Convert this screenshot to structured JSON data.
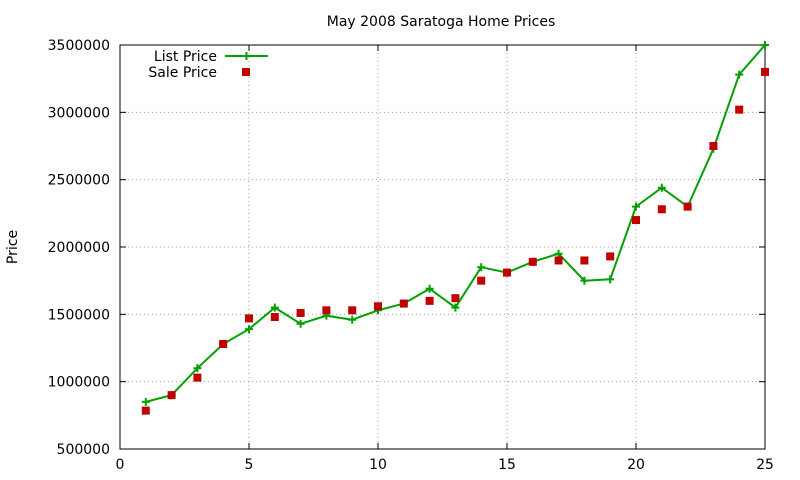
{
  "chart_data": {
    "type": "line",
    "title": "May 2008 Saratoga Home Prices",
    "xlabel": "",
    "ylabel": "Price",
    "xlim": [
      0,
      25
    ],
    "ylim": [
      500000,
      3500000
    ],
    "xticks": [
      0,
      5,
      10,
      15,
      20,
      25
    ],
    "xtick_labels": [
      "0",
      "5",
      "10",
      "15",
      "20",
      "25"
    ],
    "yticks": [
      500000,
      1000000,
      1500000,
      2000000,
      2500000,
      3000000,
      3500000
    ],
    "ytick_labels": [
      "500000",
      "1000000",
      "1500000",
      "2000000",
      "2500000",
      "3000000",
      "3500000"
    ],
    "grid": true,
    "legend_position": "top-left",
    "series": [
      {
        "name": "List Price",
        "style": "linespoints",
        "marker": "plus",
        "color": "#00a000",
        "x": [
          1,
          2,
          3,
          4,
          5,
          6,
          7,
          8,
          9,
          10,
          11,
          12,
          13,
          14,
          15,
          16,
          17,
          18,
          19,
          20,
          21,
          22,
          23,
          24,
          25
        ],
        "values": [
          850000,
          900000,
          1100000,
          1280000,
          1390000,
          1550000,
          1430000,
          1490000,
          1460000,
          1530000,
          1580000,
          1690000,
          1550000,
          1850000,
          1810000,
          1890000,
          1950000,
          1750000,
          1760000,
          2300000,
          2440000,
          2300000,
          2730000,
          3280000,
          3500000
        ]
      },
      {
        "name": "Sale Price",
        "style": "points",
        "marker": "square",
        "color": "#c00000",
        "x": [
          1,
          2,
          3,
          4,
          5,
          6,
          7,
          8,
          9,
          10,
          11,
          12,
          13,
          14,
          15,
          16,
          17,
          18,
          19,
          20,
          21,
          22,
          23,
          24,
          25
        ],
        "values": [
          785000,
          900000,
          1030000,
          1280000,
          1470000,
          1480000,
          1510000,
          1530000,
          1530000,
          1560000,
          1580000,
          1600000,
          1620000,
          1750000,
          1810000,
          1890000,
          1900000,
          1900000,
          1930000,
          2200000,
          2280000,
          2300000,
          2750000,
          3020000,
          3300000
        ]
      }
    ]
  }
}
